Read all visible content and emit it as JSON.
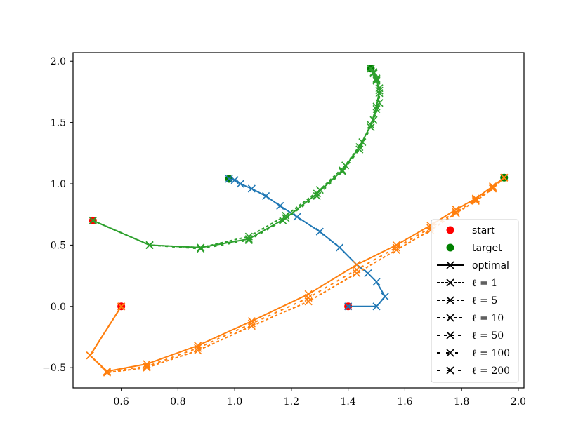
{
  "chart_data": {
    "type": "line",
    "xlim": [
      0.43,
      2.02
    ],
    "ylim": [
      -0.665,
      2.07
    ],
    "xticks": [
      {
        "value": 0.6,
        "label": "0.6"
      },
      {
        "value": 0.8,
        "label": "0.8"
      },
      {
        "value": 1.0,
        "label": "1.0"
      },
      {
        "value": 1.2,
        "label": "1.2"
      },
      {
        "value": 1.4,
        "label": "1.4"
      },
      {
        "value": 1.6,
        "label": "1.6"
      },
      {
        "value": 1.8,
        "label": "1.8"
      },
      {
        "value": 2.0,
        "label": "2.0"
      }
    ],
    "yticks": [
      {
        "value": -0.5,
        "label": "−0.5"
      },
      {
        "value": 0.0,
        "label": "0.0"
      },
      {
        "value": 0.5,
        "label": "0.5"
      },
      {
        "value": 1.0,
        "label": "1.0"
      },
      {
        "value": 1.5,
        "label": "1.5"
      },
      {
        "value": 2.0,
        "label": "2.0"
      }
    ],
    "grid": false,
    "legend_position": "lower-right",
    "colors": {
      "blue": "#1f77b4",
      "orange": "#ff7f0e",
      "green": "#2ca02c",
      "start": "#ff0000",
      "target": "#008000"
    },
    "legend": [
      {
        "label": "start",
        "kind": "marker",
        "color": "#ff0000"
      },
      {
        "label": "target",
        "kind": "marker",
        "color": "#008000"
      },
      {
        "label": "optimal",
        "kind": "line",
        "dash": ""
      },
      {
        "label": "ℓ = 1",
        "kind": "line",
        "dash": "4,2"
      },
      {
        "label": "ℓ = 5",
        "kind": "line",
        "dash": "4,3"
      },
      {
        "label": "ℓ = 10",
        "kind": "line",
        "dash": "4,4"
      },
      {
        "label": "ℓ = 50",
        "kind": "line",
        "dash": "4,6"
      },
      {
        "label": "ℓ = 100",
        "kind": "line",
        "dash": "4,9"
      },
      {
        "label": "ℓ = 200",
        "kind": "line",
        "dash": "4,11"
      }
    ],
    "starts": [
      {
        "x": 1.4,
        "y": 0.0
      },
      {
        "x": 0.6,
        "y": 0.0
      },
      {
        "x": 0.5,
        "y": 0.7
      }
    ],
    "targets": [
      {
        "x": 0.98,
        "y": 1.04
      },
      {
        "x": 1.95,
        "y": 1.05
      },
      {
        "x": 1.48,
        "y": 1.94
      }
    ],
    "trajectories": [
      {
        "color": "blue",
        "dash": "",
        "x": [
          1.4,
          1.5,
          1.53,
          1.5,
          1.47,
          1.43,
          1.37,
          1.3,
          1.22,
          1.16,
          1.11,
          1.06,
          1.02,
          1.0,
          0.98
        ],
        "y": [
          0.0,
          0.0,
          0.08,
          0.2,
          0.27,
          0.34,
          0.48,
          0.61,
          0.73,
          0.82,
          0.9,
          0.96,
          1.0,
          1.03,
          1.04
        ]
      },
      {
        "color": "orange",
        "dash": "",
        "x": [
          0.6,
          0.49,
          0.55,
          0.69,
          0.87,
          1.06,
          1.26,
          1.43,
          1.57,
          1.69,
          1.78,
          1.85,
          1.91,
          1.95
        ],
        "y": [
          0.0,
          -0.4,
          -0.53,
          -0.47,
          -0.32,
          -0.12,
          0.1,
          0.34,
          0.5,
          0.66,
          0.79,
          0.88,
          0.98,
          1.05
        ]
      },
      {
        "color": "orange",
        "dash": "4,3",
        "x": [
          0.6,
          0.49,
          0.55,
          0.69,
          0.87,
          1.06,
          1.26,
          1.43,
          1.57,
          1.69,
          1.78,
          1.85,
          1.91,
          1.95
        ],
        "y": [
          0.0,
          -0.4,
          -0.54,
          -0.5,
          -0.36,
          -0.16,
          0.04,
          0.27,
          0.46,
          0.62,
          0.76,
          0.86,
          0.96,
          1.05
        ]
      },
      {
        "color": "orange",
        "dash": "4,6",
        "x": [
          0.6,
          0.49,
          0.55,
          0.69,
          0.87,
          1.06,
          1.26,
          1.43,
          1.57,
          1.69,
          1.78,
          1.85,
          1.91,
          1.95
        ],
        "y": [
          0.0,
          -0.4,
          -0.53,
          -0.49,
          -0.34,
          -0.14,
          0.07,
          0.3,
          0.48,
          0.64,
          0.77,
          0.87,
          0.97,
          1.05
        ]
      },
      {
        "color": "green",
        "dash": "",
        "x": [
          0.5,
          0.7,
          0.88,
          1.05,
          1.18,
          1.29,
          1.38,
          1.44,
          1.48,
          1.5,
          1.51,
          1.5,
          1.49,
          1.48
        ],
        "y": [
          0.7,
          0.5,
          0.48,
          0.55,
          0.72,
          0.92,
          1.11,
          1.3,
          1.48,
          1.63,
          1.76,
          1.85,
          1.91,
          1.94
        ]
      },
      {
        "color": "green",
        "dash": "4,3",
        "x": [
          0.5,
          0.7,
          0.88,
          1.05,
          1.18,
          1.3,
          1.39,
          1.45,
          1.49,
          1.51,
          1.51,
          1.5,
          1.49,
          1.48
        ],
        "y": [
          0.7,
          0.5,
          0.48,
          0.57,
          0.74,
          0.95,
          1.15,
          1.34,
          1.52,
          1.66,
          1.78,
          1.86,
          1.91,
          1.94
        ]
      },
      {
        "color": "green",
        "dash": "4,6",
        "x": [
          0.5,
          0.7,
          0.88,
          1.05,
          1.17,
          1.29,
          1.38,
          1.44,
          1.48,
          1.5,
          1.51,
          1.5,
          1.49,
          1.48
        ],
        "y": [
          0.7,
          0.5,
          0.47,
          0.54,
          0.7,
          0.9,
          1.1,
          1.28,
          1.46,
          1.61,
          1.74,
          1.84,
          1.9,
          1.94
        ]
      }
    ]
  }
}
